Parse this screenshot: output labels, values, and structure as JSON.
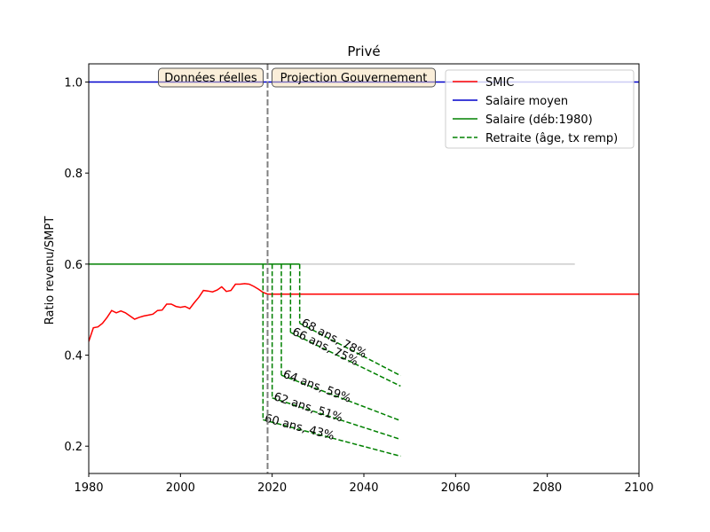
{
  "chart_data": {
    "type": "line",
    "title": "Privé",
    "xlabel": "",
    "ylabel": "Ratio revenu/SMPT",
    "xlim": [
      1980,
      2100
    ],
    "ylim": [
      0.14,
      1.04
    ],
    "xticks": [
      1980,
      2000,
      2020,
      2040,
      2060,
      2080,
      2100
    ],
    "xtick_labels": [
      "1980",
      "2000",
      "2020",
      "2040",
      "2060",
      "2080",
      "2100"
    ],
    "yticks": [
      0.2,
      0.4,
      0.6,
      0.8,
      1.0
    ],
    "ytick_labels": [
      "0.2",
      "0.4",
      "0.6",
      "0.8",
      "1.0"
    ],
    "divider_year": 2019,
    "region_labels": {
      "left": "Données réelles",
      "right": "Projection Gouvernement"
    },
    "legend": {
      "placement": "top-right",
      "entries": [
        {
          "label": "SMIC",
          "color": "#ff0000",
          "style": "solid"
        },
        {
          "label": "Salaire moyen",
          "color": "#0000cc",
          "style": "solid"
        },
        {
          "label": "Salaire (déb:1980)",
          "color": "#008000",
          "style": "solid"
        },
        {
          "label": "Retraite (âge, tx remp)",
          "color": "#008000",
          "style": "dashed"
        }
      ]
    },
    "series": [
      {
        "name": "SMIC",
        "color": "#ff0000",
        "x": [
          1980,
          1981,
          1982,
          1983,
          1984,
          1985,
          1986,
          1987,
          1988,
          1989,
          1990,
          1991,
          1992,
          1993,
          1994,
          1995,
          1996,
          1997,
          1998,
          1999,
          2000,
          2001,
          2002,
          2003,
          2004,
          2005,
          2006,
          2007,
          2008,
          2009,
          2010,
          2011,
          2012,
          2013,
          2014,
          2015,
          2016,
          2017,
          2018,
          2019,
          2020,
          2040,
          2060,
          2080,
          2100
        ],
        "y": [
          0.43,
          0.46,
          0.462,
          0.47,
          0.483,
          0.498,
          0.493,
          0.497,
          0.493,
          0.486,
          0.479,
          0.483,
          0.486,
          0.488,
          0.49,
          0.498,
          0.499,
          0.512,
          0.512,
          0.507,
          0.505,
          0.507,
          0.502,
          0.515,
          0.527,
          0.542,
          0.541,
          0.539,
          0.543,
          0.55,
          0.54,
          0.542,
          0.556,
          0.556,
          0.557,
          0.556,
          0.551,
          0.545,
          0.538,
          0.534,
          0.534,
          0.534,
          0.534,
          0.534,
          0.534
        ]
      },
      {
        "name": "Salaire moyen",
        "color": "#0000cc",
        "x": [
          1980,
          2100
        ],
        "y": [
          1.0,
          1.0
        ]
      },
      {
        "name": "Salaire (déb:1980)",
        "color": "#008000",
        "x": [
          1980,
          2026
        ],
        "y": [
          0.6,
          0.6
        ]
      },
      {
        "name": "Salaire projection",
        "color": "#cccccc",
        "x": [
          2026,
          2086
        ],
        "y": [
          0.6,
          0.6
        ]
      }
    ],
    "retirement": [
      {
        "label": "60 ans, 43%",
        "year": 2018,
        "start": 0.258,
        "end": 0.178
      },
      {
        "label": "62 ans, 51%",
        "year": 2020,
        "start": 0.306,
        "end": 0.215
      },
      {
        "label": "64 ans, 59%",
        "year": 2022,
        "start": 0.356,
        "end": 0.256
      },
      {
        "label": "66 ans, 75%",
        "year": 2024,
        "start": 0.45,
        "end": 0.332
      },
      {
        "label": "68 ans, 78%",
        "year": 2026,
        "start": 0.47,
        "end": 0.355
      }
    ],
    "retirement_end_year": 2048
  }
}
